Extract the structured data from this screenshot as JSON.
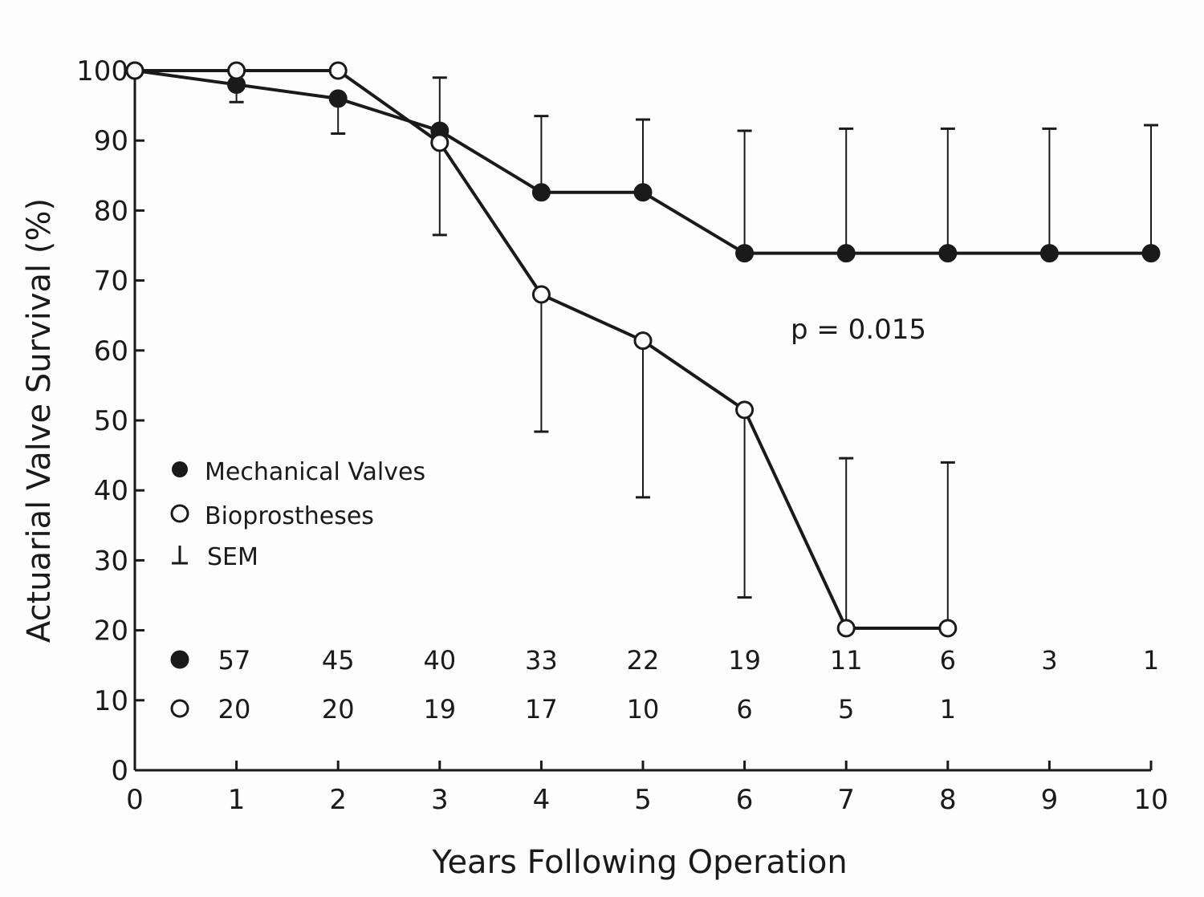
{
  "chart_data": {
    "type": "line",
    "xlabel": "Years Following Operation",
    "ylabel": "Actuarial Valve Survival (%)",
    "xlim": [
      0,
      10
    ],
    "ylim": [
      0,
      100
    ],
    "xticks": [
      0,
      1,
      2,
      3,
      4,
      5,
      6,
      7,
      8,
      9,
      10
    ],
    "yticks": [
      0,
      10,
      20,
      30,
      40,
      50,
      60,
      70,
      80,
      90,
      100
    ],
    "grid": false,
    "annotation": "p = 0.015",
    "legend": {
      "placement": "center-left",
      "entries": [
        {
          "marker": "filled-circle",
          "label": "Mechanical Valves"
        },
        {
          "marker": "open-circle",
          "label": "Bioprostheses"
        },
        {
          "marker": "error-bar",
          "label": "SEM"
        }
      ]
    },
    "series": [
      {
        "name": "Mechanical Valves",
        "marker": "filled",
        "x": [
          0,
          1,
          2,
          3,
          4,
          5,
          6,
          7,
          8,
          9,
          10
        ],
        "y": [
          100,
          98,
          96,
          91.4,
          82.6,
          82.6,
          73.9,
          73.9,
          73.9,
          73.9,
          73.9
        ],
        "sem": [
          null,
          [
            95.5,
            98
          ],
          [
            91,
            96
          ],
          [
            91.4,
            99
          ],
          [
            82.6,
            93.5
          ],
          [
            82.6,
            93
          ],
          [
            73.9,
            91.4
          ],
          [
            73.9,
            91.7
          ],
          [
            73.9,
            91.7
          ],
          [
            73.9,
            91.7
          ],
          [
            73.9,
            92.2
          ]
        ],
        "at_risk": [
          "57",
          "45",
          "40",
          "33",
          "22",
          "19",
          "11",
          "6",
          "3",
          "1"
        ]
      },
      {
        "name": "Bioprostheses",
        "marker": "open",
        "x": [
          0,
          1,
          2,
          3,
          4,
          5,
          6,
          7,
          8
        ],
        "y": [
          100,
          100,
          100,
          89.7,
          68,
          61.4,
          51.5,
          20.3,
          20.3
        ],
        "sem": [
          null,
          null,
          null,
          [
            76.5,
            89.7
          ],
          [
            48.4,
            68
          ],
          [
            39,
            61.4
          ],
          [
            24.7,
            51.5
          ],
          [
            20.3,
            44.6
          ],
          [
            20.3,
            44
          ]
        ],
        "at_risk": [
          "20",
          "20",
          "19",
          "17",
          "10",
          "6",
          "5",
          "1"
        ]
      }
    ],
    "colors": {
      "ink": "#1a1a1a",
      "background": "#fdfdfd"
    }
  }
}
